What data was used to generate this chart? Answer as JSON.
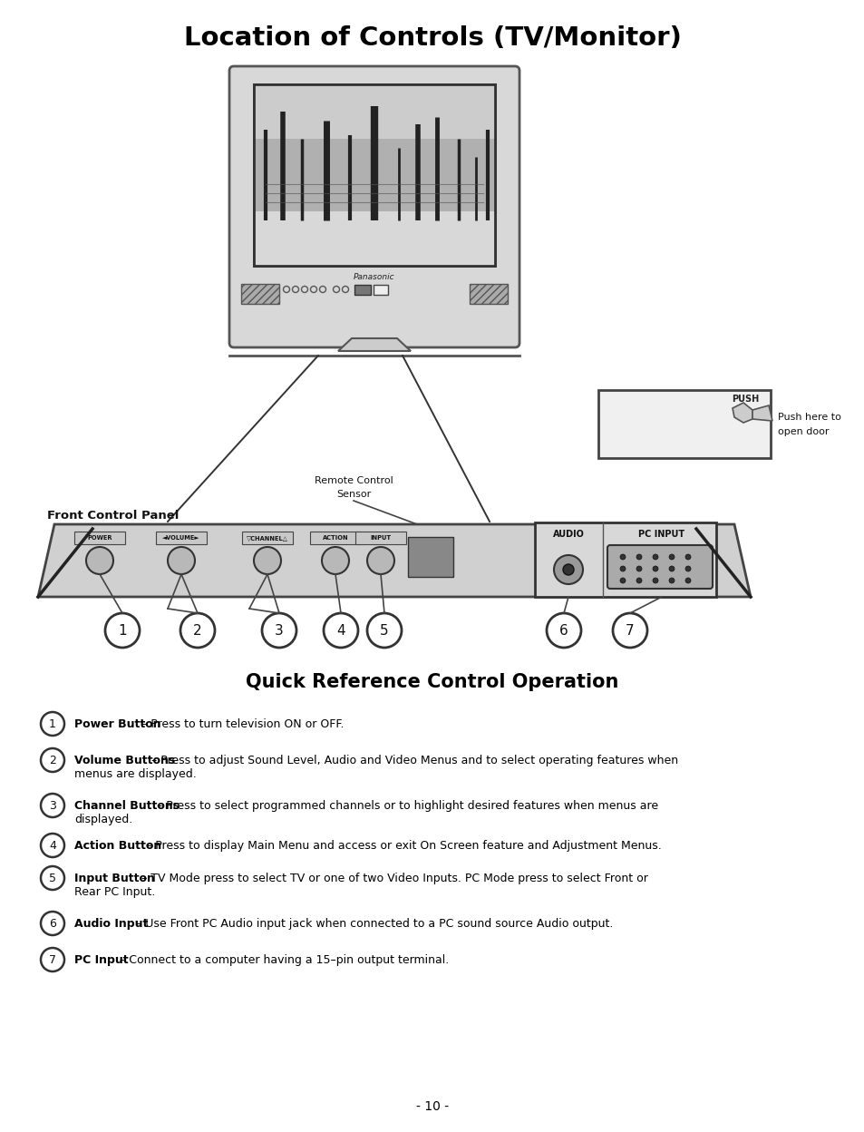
{
  "title": "Location of Controls (TV/Monitor)",
  "subtitle": "Quick Reference Control Operation",
  "background_color": "#ffffff",
  "text_color": "#000000",
  "page_number": "- 10 -",
  "items": [
    {
      "num": "1",
      "bold": "Power Button",
      "text": " – Press to turn television ON or OFF."
    },
    {
      "num": "2",
      "bold": "Volume Buttons",
      "text": " – Press to adjust Sound Level, Audio and Video Menus and to select operating features when menus are displayed."
    },
    {
      "num": "3",
      "bold": "Channel Buttons",
      "text": " – Press to select programmed channels or to highlight desired features when menus are displayed."
    },
    {
      "num": "4",
      "bold": "Action Button",
      "text": " – Press to display Main Menu and access or exit On Screen feature and Adjustment Menus."
    },
    {
      "num": "5",
      "bold": "Input Button",
      "text": " – TV Mode press to select TV or one of two Video Inputs. PC Mode press to select Front or Rear PC Input."
    },
    {
      "num": "6",
      "bold": "Audio Input",
      "text": " – Use Front PC Audio input jack when connected to a PC sound source Audio output."
    },
    {
      "num": "7",
      "bold": "PC Input",
      "text": " – Connect to a computer having a 15–pin output terminal."
    }
  ]
}
